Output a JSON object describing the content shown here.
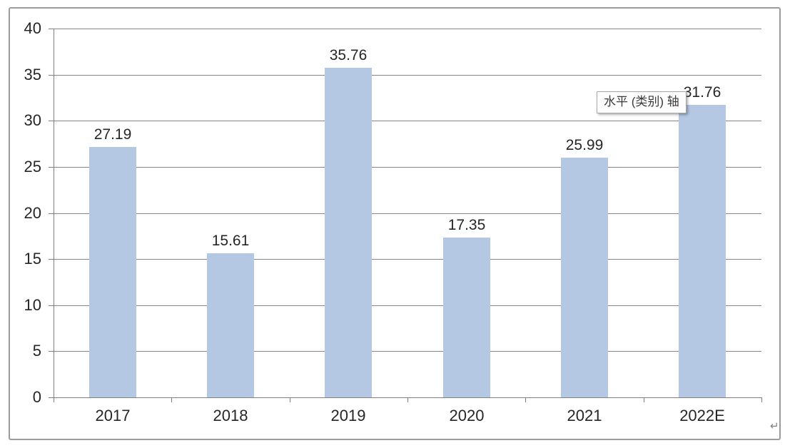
{
  "chart_data": {
    "type": "bar",
    "title": "",
    "categories": [
      "2017",
      "2018",
      "2019",
      "2020",
      "2021",
      "2022E"
    ],
    "values": [
      27.19,
      15.61,
      35.76,
      17.35,
      25.99,
      31.76
    ],
    "data_labels": [
      "27.19",
      "15.61",
      "35.76",
      "17.35",
      "25.99",
      "31.76"
    ],
    "xlabel": "",
    "ylabel": "",
    "ylim": [
      0,
      40
    ],
    "y_ticks": [
      0,
      5,
      10,
      15,
      20,
      25,
      30,
      35,
      40
    ],
    "grid": true,
    "legend_position": "none",
    "bar_color": "#b4c7e3",
    "gridline_color": "#868686",
    "axis_color": "#7f7f7f",
    "label_color": "#262626"
  },
  "tooltip": {
    "text": "水平 (类别) 轴"
  },
  "icons": {
    "corner_cursor": "↵"
  }
}
